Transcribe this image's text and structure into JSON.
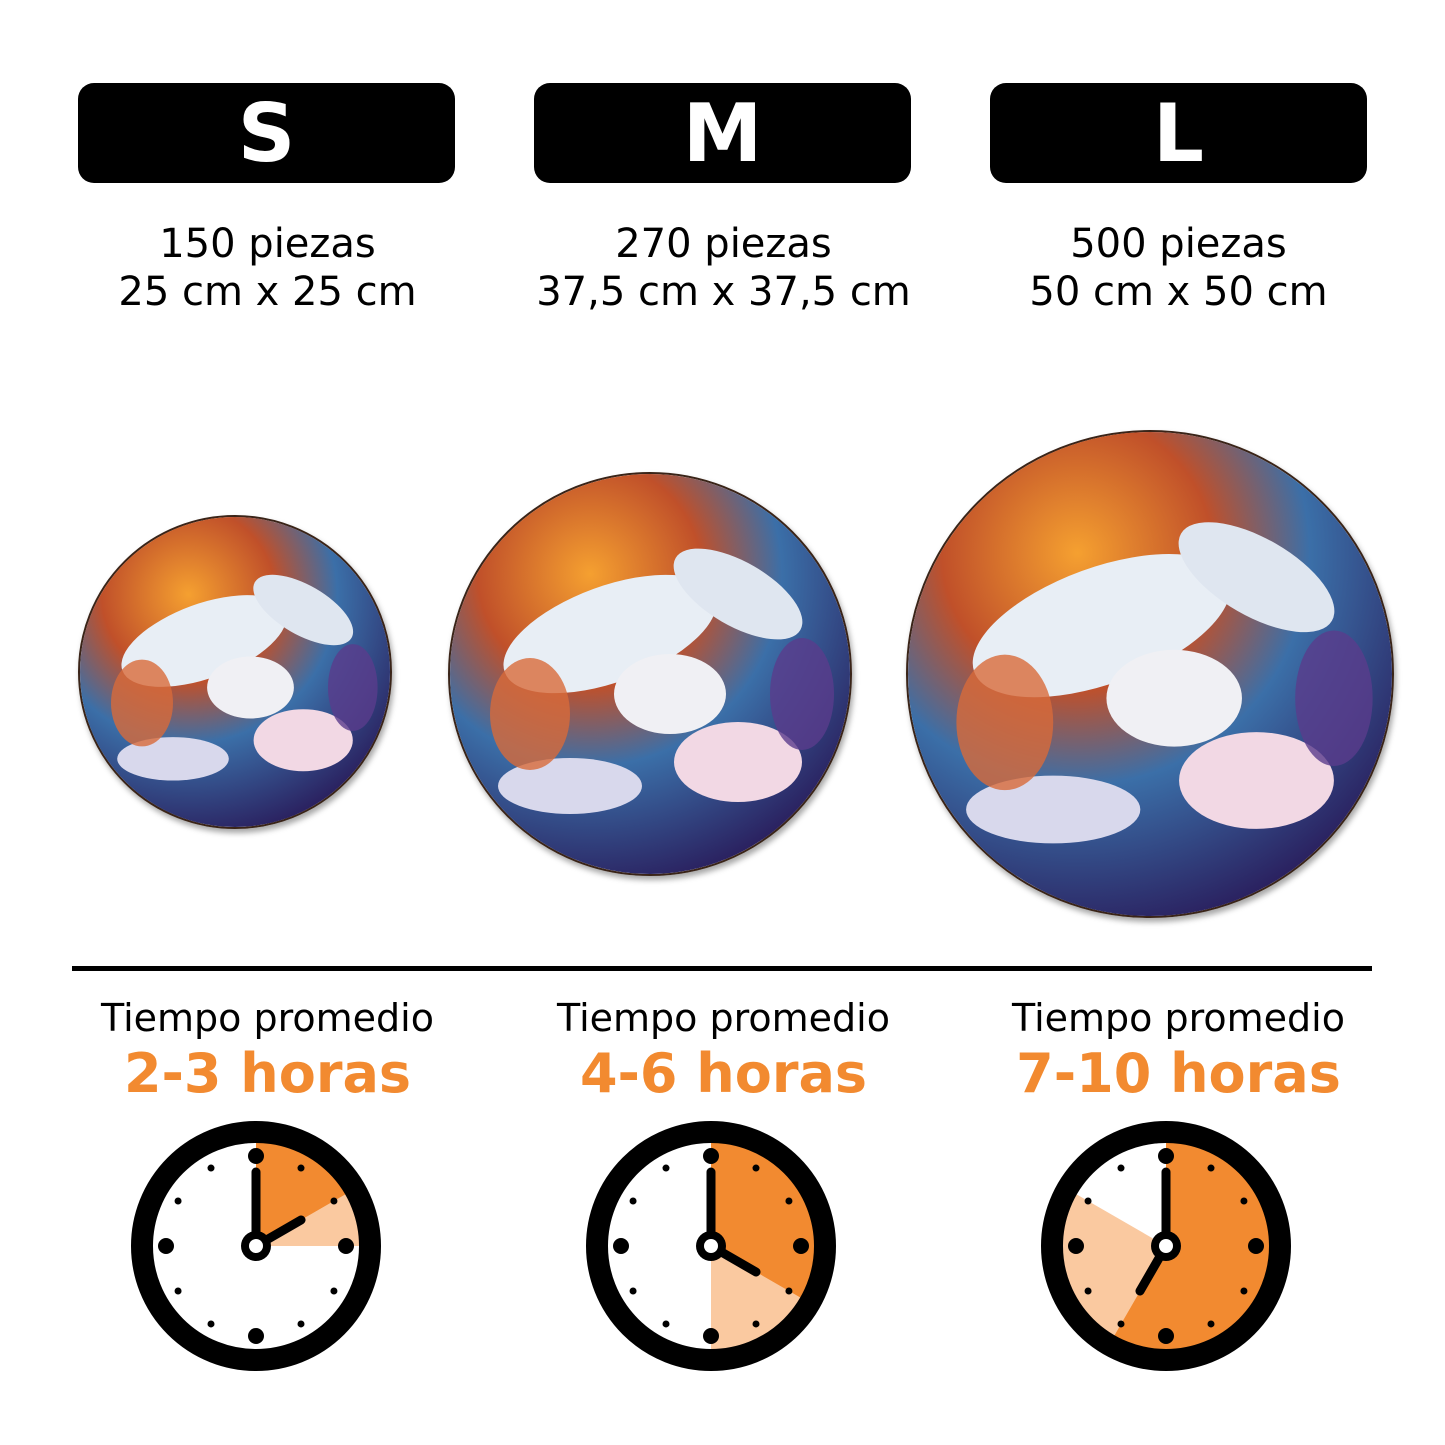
{
  "accent_color": "#f28a30",
  "accent_light_color": "#fac9a0",
  "sizes": [
    {
      "label": "S",
      "pieces": "150 piezas",
      "dimensions": "25 cm x 25 cm",
      "time_label": "Tiempo promedio",
      "time": "2-3 horas",
      "clock": {
        "min_hours": 2,
        "max_hours": 3,
        "hand_hour": 2
      }
    },
    {
      "label": "M",
      "pieces": "270 piezas",
      "dimensions": "37,5 cm x 37,5 cm",
      "time_label": "Tiempo promedio",
      "time": "4-6 horas",
      "clock": {
        "min_hours": 4,
        "max_hours": 6,
        "hand_hour": 4
      }
    },
    {
      "label": "L",
      "pieces": "500 piezas",
      "dimensions": "50 cm x 50 cm",
      "time_label": "Tiempo promedio",
      "time": "7-10 horas",
      "clock": {
        "min_hours": 7,
        "max_hours": 10,
        "hand_hour": 7
      }
    }
  ]
}
